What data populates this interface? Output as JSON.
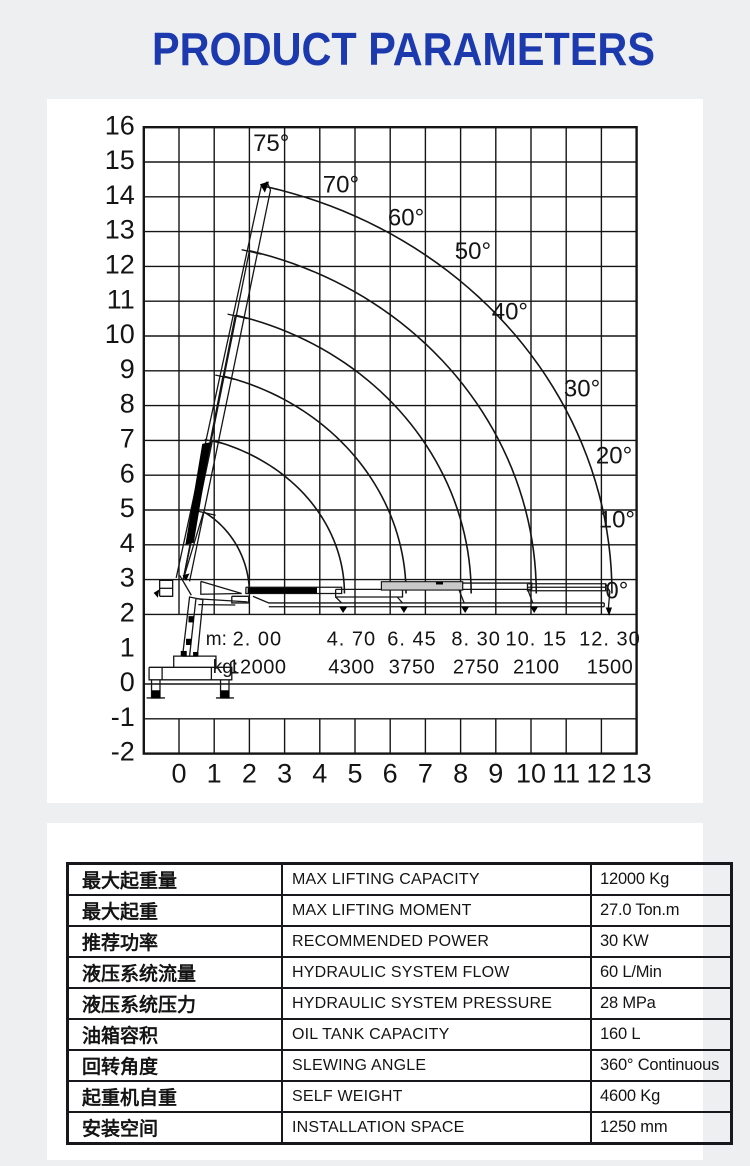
{
  "page": {
    "background": "#edeff1",
    "panel": "#ffffff",
    "line_color": "#141414"
  },
  "title": {
    "text": "PRODUCT PARAMETERS",
    "color": "#1c3aad"
  },
  "chart_data": {
    "type": "line",
    "title": "",
    "xlabel": "",
    "ylabel": "",
    "x_axis": {
      "min": -1,
      "max": 13,
      "tick_labels": [
        "0",
        "1",
        "2",
        "3",
        "4",
        "5",
        "6",
        "7",
        "8",
        "9",
        "10",
        "11",
        "12",
        "13"
      ],
      "tick_values": [
        0,
        1,
        2,
        3,
        4,
        5,
        6,
        7,
        8,
        9,
        10,
        11,
        12,
        13
      ]
    },
    "y_axis": {
      "min": -2,
      "max": 16,
      "tick_labels": [
        "-2",
        "-1",
        "0",
        "1",
        "2",
        "3",
        "4",
        "5",
        "6",
        "7",
        "8",
        "9",
        "10",
        "11",
        "12",
        "13",
        "14",
        "15",
        "16"
      ],
      "tick_values": [
        -2,
        -1,
        0,
        1,
        2,
        3,
        4,
        5,
        6,
        7,
        8,
        9,
        10,
        11,
        12,
        13,
        14,
        15,
        16
      ]
    },
    "grid": true,
    "boom_angle_labels": [
      {
        "text": "75°",
        "x": 2.62,
        "y": 15.5
      },
      {
        "text": "70°",
        "x": 4.6,
        "y": 14.31
      },
      {
        "text": "60°",
        "x": 6.45,
        "y": 13.36
      },
      {
        "text": "50°",
        "x": 8.35,
        "y": 12.39
      },
      {
        "text": "40°",
        "x": 9.4,
        "y": 10.66
      },
      {
        "text": "30°",
        "x": 11.45,
        "y": 8.45
      },
      {
        "text": "20°",
        "x": 12.36,
        "y": 6.52
      },
      {
        "text": "10°",
        "x": 12.44,
        "y": 4.68
      },
      {
        "text": "0°",
        "x": 12.44,
        "y": 2.64
      }
    ],
    "curves": [
      {
        "reach_m": 2.0,
        "capacity_kg": 12000,
        "tip": [
          0.7,
          4.95
        ]
      },
      {
        "reach_m": 4.7,
        "capacity_kg": 4300,
        "tip": [
          0.95,
          7.0
        ]
      },
      {
        "reach_m": 6.45,
        "capacity_kg": 3750,
        "tip": [
          1.25,
          8.85
        ]
      },
      {
        "reach_m": 8.3,
        "capacity_kg": 2750,
        "tip": [
          1.6,
          10.6
        ]
      },
      {
        "reach_m": 10.15,
        "capacity_kg": 2100,
        "tip": [
          2.0,
          12.45
        ]
      },
      {
        "reach_m": 12.3,
        "capacity_kg": 1500,
        "tip": [
          2.44,
          14.3
        ]
      }
    ],
    "load_rows": {
      "m_label": "m:",
      "kg_label": "kg:",
      "m_values": [
        "2. 00",
        "4. 70",
        "6. 45",
        "8. 30",
        "10. 15",
        "12. 30"
      ],
      "kg_values": [
        "12000",
        "4300",
        "3750",
        "2750",
        "2100",
        "1500"
      ]
    }
  },
  "spec_table": {
    "rows": [
      {
        "cn": "最大起重量",
        "en": "MAX LIFTING CAPACITY",
        "value": "12000 Kg"
      },
      {
        "cn": "最大起重",
        "en": "MAX LIFTING MOMENT",
        "value": "27.0 Ton.m"
      },
      {
        "cn": "推荐功率",
        "en": "RECOMMENDED POWER",
        "value": "30 KW"
      },
      {
        "cn": "液压系统流量",
        "en": "HYDRAULIC SYSTEM FLOW",
        "value": "60 L/Min"
      },
      {
        "cn": "液压系统压力",
        "en": "HYDRAULIC SYSTEM PRESSURE",
        "value": "28 MPa"
      },
      {
        "cn": "油箱容积",
        "en": "OIL TANK CAPACITY",
        "value": "160 L"
      },
      {
        "cn": "回转角度",
        "en": "SLEWING ANGLE",
        "value": "360° Continuous"
      },
      {
        "cn": "起重机自重",
        "en": "SELF WEIGHT",
        "value": "4600 Kg"
      },
      {
        "cn": "安装空间",
        "en": "INSTALLATION SPACE",
        "value": "1250 mm"
      }
    ]
  }
}
